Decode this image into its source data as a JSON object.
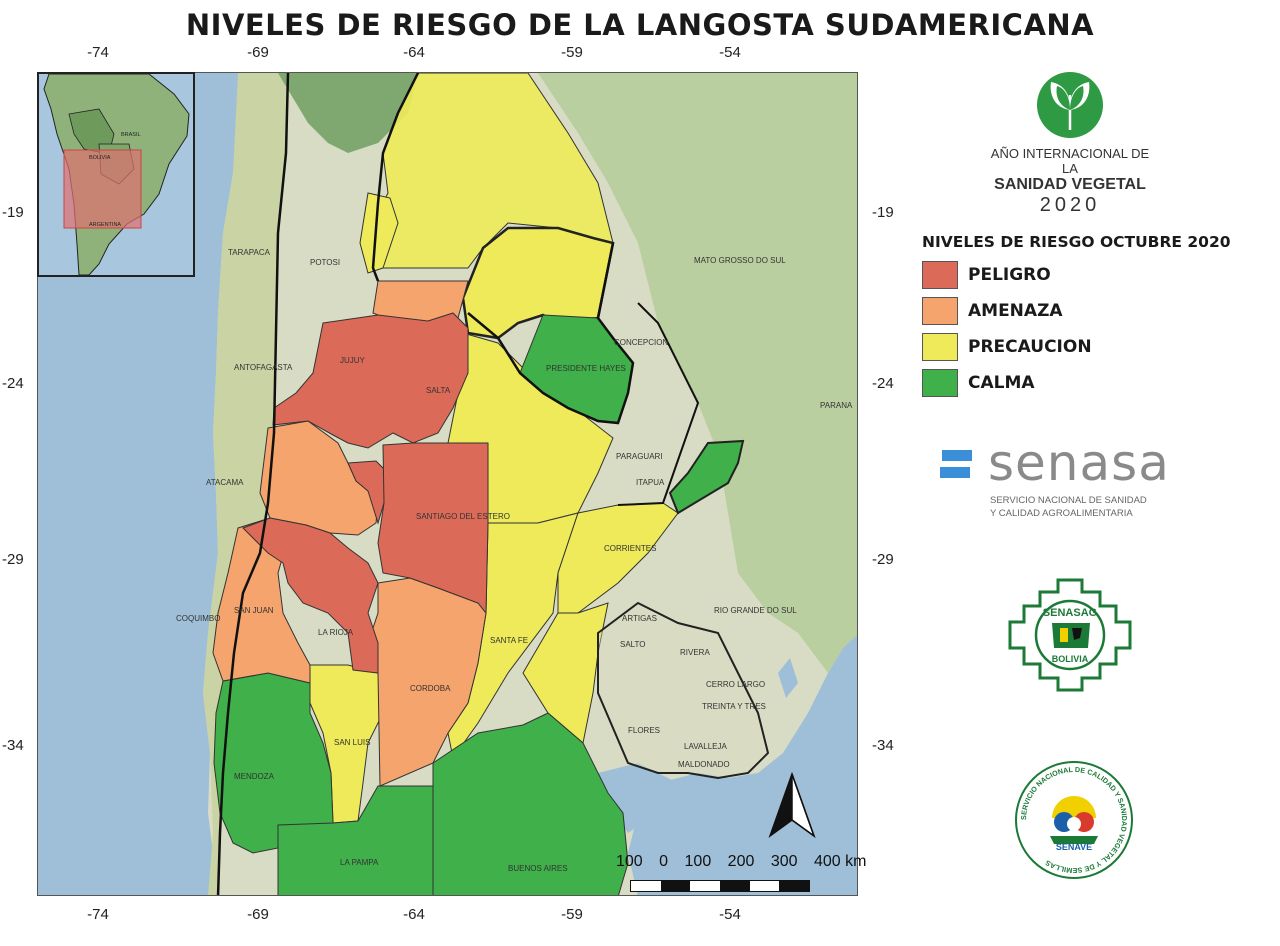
{
  "title": "NIVELES DE RIESGO DE LA LANGOSTA SUDAMERICANA",
  "axes": {
    "longitude_ticks": [
      "-74",
      "-69",
      "-64",
      "-59",
      "-54"
    ],
    "latitude_ticks": [
      "-19",
      "-24",
      "-29",
      "-34"
    ]
  },
  "legend": {
    "title": "NIVELES DE RIESGO OCTUBRE 2020",
    "items": [
      {
        "label": "PELIGRO",
        "color": "#dc6a58"
      },
      {
        "label": "AMENAZA",
        "color": "#f4a46c"
      },
      {
        "label": "PRECAUCION",
        "color": "#eeea5a"
      },
      {
        "label": "CALMA",
        "color": "#3fb04a"
      }
    ]
  },
  "scale_bar": {
    "labels": [
      "100",
      "0",
      "100",
      "200",
      "300",
      "400 km"
    ]
  },
  "logos": {
    "aisv": {
      "line1": "AÑO INTERNACIONAL DE LA",
      "line2": "SANIDAD VEGETAL",
      "year": "2020"
    },
    "senasa": {
      "name": "senasa",
      "subtitle_line1": "SERVICIO NACIONAL DE SANIDAD",
      "subtitle_line2": "Y CALIDAD AGROALIMENTARIA"
    },
    "senasag": {
      "top": "SENASAG",
      "bottom": "BOLIVIA"
    },
    "senave": {
      "ring": "SERVICIO NACIONAL DE CALIDAD Y SANIDAD VEGETAL Y DE SEMILLAS",
      "name": "SENAVE"
    }
  },
  "map_labels": {
    "tarapaca": "TARAPACA",
    "potosi": "POTOSI",
    "antofagasta": "ANTOFAGASTA",
    "atacama": "ATACAMA",
    "coquimbo": "COQUIMBO",
    "santiago_del_estero": "SANTIAGO DEL ESTERO",
    "cordoba": "CORDOBA",
    "san_luis": "SAN LUIS",
    "mendoza": "MENDOZA",
    "la_pampa": "LA PAMPA",
    "buenos_aires": "BUENOS AIRES",
    "corrientes": "CORRIENTES",
    "rio_grande_do_sul": "RIO GRANDE DO SUL",
    "mato_grosso_do_sul": "MATO GROSSO DO SUL",
    "parana": "PARANA",
    "artigas": "ARTIGAS",
    "salto": "SALTO",
    "rivera": "RIVERA",
    "cerro_largo": "CERRO LARGO",
    "treinta_y_tres": "TREINTA Y TRES",
    "lavalleja": "LAVALLEJA",
    "flores": "FLORES",
    "maldonado": "MALDONADO",
    "concepcion": "CONCEPCION",
    "presidente_hayes": "PRESIDENTE HAYES",
    "paraguari": "PARAGUARI",
    "itapua": "ITAPUA",
    "la_rioja": "LA RIOJA",
    "san_juan": "SAN JUAN",
    "santa_fe": "SANTA FE",
    "salta": "SALTA",
    "jujuy": "JUJUY",
    "brasil": "BRASIL",
    "bolivia": "BOLIVIA",
    "argentina": "ARGENTINA"
  }
}
